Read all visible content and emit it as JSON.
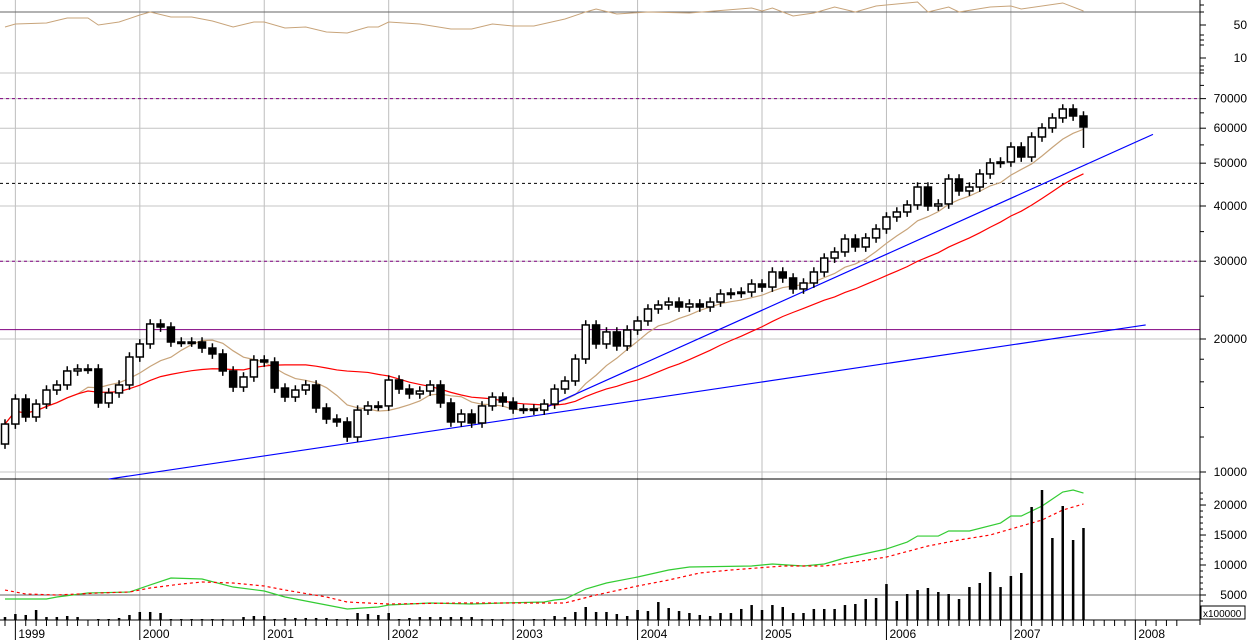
{
  "chart_data": {
    "type": "candlestick",
    "interval": "month",
    "first_period": "1998-12",
    "years": [
      "1999",
      "2000",
      "2001",
      "2002",
      "2003",
      "2004",
      "2005",
      "2006",
      "2007",
      "2008"
    ],
    "first_open": 11570,
    "close": [
      12840,
      14630,
      13320,
      14250,
      15330,
      15740,
      16930,
      17110,
      17110,
      14330,
      15100,
      15740,
      18210,
      19490,
      21630,
      21290,
      19690,
      19690,
      19690,
      19080,
      18500,
      16930,
      15570,
      16410,
      17930,
      17740,
      15490,
      14780,
      15330,
      15740,
      13960,
      13180,
      12980,
      12000,
      13810,
      14110,
      14110,
      16150,
      15410,
      15020,
      15250,
      15740,
      14330,
      12980,
      13530,
      12910,
      14110,
      14780,
      14400,
      13890,
      13890,
      13810,
      14250,
      15410,
      16070,
      18020,
      21520,
      19490,
      20750,
      19290,
      20960,
      21970,
      23390,
      23880,
      24250,
      23630,
      24010,
      23630,
      24250,
      25290,
      25420,
      25550,
      26640,
      26220,
      28360,
      27490,
      25960,
      26780,
      28360,
      30500,
      31480,
      33680,
      32310,
      33870,
      35490,
      37780,
      38770,
      40220,
      44160,
      40000,
      40430,
      46050,
      43260,
      44160,
      47270,
      50060,
      50320,
      54410,
      51640,
      57320,
      60080,
      63290,
      66320,
      63940,
      60380
    ],
    "last_low": 54140,
    "volume": [
      1330,
      1830,
      1670,
      2500,
      1330,
      1330,
      1500,
      1330,
      830,
      1000,
      1000,
      1170,
      1670,
      2170,
      2170,
      2000,
      1000,
      1000,
      1000,
      1000,
      1000,
      1000,
      830,
      1330,
      1500,
      1500,
      1000,
      1170,
      1170,
      1170,
      1170,
      1170,
      1000,
      1000,
      2000,
      1830,
      1670,
      2000,
      1000,
      1170,
      1330,
      1330,
      1330,
      1330,
      1330,
      1330,
      1000,
      1000,
      1000,
      1000,
      830,
      1000,
      1000,
      1500,
      1330,
      2170,
      3000,
      2170,
      2170,
      1830,
      1500,
      2500,
      2330,
      3830,
      2830,
      2330,
      2000,
      1670,
      1500,
      2000,
      2000,
      2670,
      3330,
      2500,
      3330,
      3000,
      2000,
      2000,
      2670,
      2670,
      2670,
      3330,
      3500,
      4330,
      4500,
      6830,
      4000,
      5170,
      5830,
      6170,
      5500,
      5170,
      4330,
      6330,
      7000,
      8830,
      6330,
      8170,
      8670,
      19670,
      22500,
      14500,
      19830,
      14170,
      16170
    ],
    "price_axis": {
      "scale": "log",
      "ticks": [
        10000,
        20000,
        30000,
        40000,
        50000,
        60000,
        70000
      ],
      "gridlines": [
        10000,
        20000,
        30000,
        40000,
        50000,
        60000,
        70000,
        80000
      ]
    },
    "volume_axis": {
      "ticks": [
        5000,
        10000,
        15000,
        20000
      ],
      "unit_label": "x100000"
    },
    "indicator_axis": {
      "ticks": [
        50,
        10
      ],
      "reference_line": 65.8
    },
    "moving_averages": [
      {
        "period": 8,
        "color": "#c8a47a"
      },
      {
        "period": 24,
        "color": "#ff0000"
      }
    ],
    "horizontal_lines": [
      {
        "value": 70000,
        "style": "dashed",
        "color": "#800080"
      },
      {
        "value": 45000,
        "style": "dashed",
        "color": "#000000"
      },
      {
        "value": 30000,
        "style": "dashed",
        "color": "#800080"
      },
      {
        "value": 21000,
        "style": "solid",
        "color": "#800080"
      }
    ],
    "trendlines": [
      {
        "from": [
          10,
          9640
        ],
        "to": [
          110,
          21520
        ],
        "color": "#0000ff"
      },
      {
        "from": [
          51.6,
          13810
        ],
        "to": [
          110.7,
          58100
        ],
        "color": "#0000ff"
      }
    ],
    "indicator_series": {
      "color": "#c8a47a",
      "points": [
        [
          0,
          47.6
        ],
        [
          1,
          51.2
        ],
        [
          4,
          52.4
        ],
        [
          6,
          58.5
        ],
        [
          8,
          58.5
        ],
        [
          9,
          50
        ],
        [
          11,
          53.6
        ],
        [
          13,
          62.1
        ],
        [
          14,
          65.8
        ],
        [
          16,
          59.7
        ],
        [
          18,
          59.7
        ],
        [
          20,
          54.8
        ],
        [
          22,
          47.6
        ],
        [
          24,
          53.6
        ],
        [
          25,
          53.6
        ],
        [
          27,
          46.4
        ],
        [
          29,
          47.6
        ],
        [
          31,
          41.5
        ],
        [
          33,
          40.3
        ],
        [
          35,
          47.6
        ],
        [
          36,
          47.6
        ],
        [
          37,
          53.6
        ],
        [
          40,
          51.2
        ],
        [
          43,
          45.2
        ],
        [
          45,
          45.2
        ],
        [
          47,
          51.2
        ],
        [
          49,
          48.8
        ],
        [
          51,
          48.8
        ],
        [
          54,
          57.3
        ],
        [
          56,
          65.8
        ],
        [
          57,
          69.4
        ],
        [
          59,
          63.3
        ],
        [
          62,
          65.8
        ],
        [
          66,
          64.5
        ],
        [
          72,
          70.6
        ],
        [
          73,
          67
        ],
        [
          74,
          70.6
        ],
        [
          76,
          60.9
        ],
        [
          78,
          64.5
        ],
        [
          80,
          71.8
        ],
        [
          82,
          65.8
        ],
        [
          84,
          73
        ],
        [
          88,
          77.9
        ],
        [
          89,
          65.8
        ],
        [
          91,
          71.8
        ],
        [
          92,
          65.8
        ],
        [
          95,
          71.8
        ],
        [
          97,
          73
        ],
        [
          98,
          69.4
        ],
        [
          102,
          76.7
        ],
        [
          104,
          67
        ]
      ]
    },
    "volume_lines": [
      {
        "name": "green",
        "color": "#33cc33",
        "style": "solid",
        "points": [
          [
            0,
            4330
          ],
          [
            4,
            4330
          ],
          [
            5,
            4670
          ],
          [
            8,
            5330
          ],
          [
            12,
            5500
          ],
          [
            14,
            6670
          ],
          [
            16,
            7830
          ],
          [
            19,
            7670
          ],
          [
            22,
            6330
          ],
          [
            25,
            5670
          ],
          [
            27,
            4670
          ],
          [
            30,
            3670
          ],
          [
            33,
            2670
          ],
          [
            36,
            3000
          ],
          [
            37,
            3330
          ],
          [
            41,
            3670
          ],
          [
            45,
            3500
          ],
          [
            48,
            3670
          ],
          [
            52,
            3830
          ],
          [
            53,
            4170
          ],
          [
            54,
            4330
          ],
          [
            56,
            6000
          ],
          [
            58,
            7000
          ],
          [
            61,
            8000
          ],
          [
            64,
            9170
          ],
          [
            66,
            9670
          ],
          [
            72,
            9830
          ],
          [
            74,
            10170
          ],
          [
            77,
            9830
          ],
          [
            79,
            10170
          ],
          [
            81,
            11170
          ],
          [
            85,
            12670
          ],
          [
            87,
            13830
          ],
          [
            88,
            14830
          ],
          [
            90,
            14830
          ],
          [
            91,
            15670
          ],
          [
            93,
            15670
          ],
          [
            96,
            17000
          ],
          [
            97,
            18170
          ],
          [
            98,
            18170
          ],
          [
            100,
            19830
          ],
          [
            102,
            22170
          ],
          [
            103,
            22500
          ],
          [
            104,
            22000
          ]
        ]
      },
      {
        "name": "red",
        "color": "#ff0000",
        "style": "dashed",
        "points": [
          [
            0,
            5830
          ],
          [
            2,
            5170
          ],
          [
            5,
            5000
          ],
          [
            9,
            5330
          ],
          [
            12,
            5500
          ],
          [
            14,
            6170
          ],
          [
            17,
            6830
          ],
          [
            19,
            7170
          ],
          [
            22,
            7000
          ],
          [
            25,
            6500
          ],
          [
            27,
            5830
          ],
          [
            31,
            4670
          ],
          [
            33,
            3830
          ],
          [
            37,
            3500
          ],
          [
            44,
            3670
          ],
          [
            51,
            3670
          ],
          [
            54,
            3670
          ],
          [
            57,
            5000
          ],
          [
            61,
            6500
          ],
          [
            64,
            7500
          ],
          [
            67,
            8670
          ],
          [
            70,
            9170
          ],
          [
            75,
            9830
          ],
          [
            79,
            9830
          ],
          [
            82,
            10500
          ],
          [
            85,
            11330
          ],
          [
            89,
            13170
          ],
          [
            92,
            14170
          ],
          [
            95,
            15000
          ],
          [
            97,
            16000
          ],
          [
            100,
            17500
          ],
          [
            102,
            19170
          ],
          [
            104,
            20170
          ]
        ]
      }
    ]
  }
}
